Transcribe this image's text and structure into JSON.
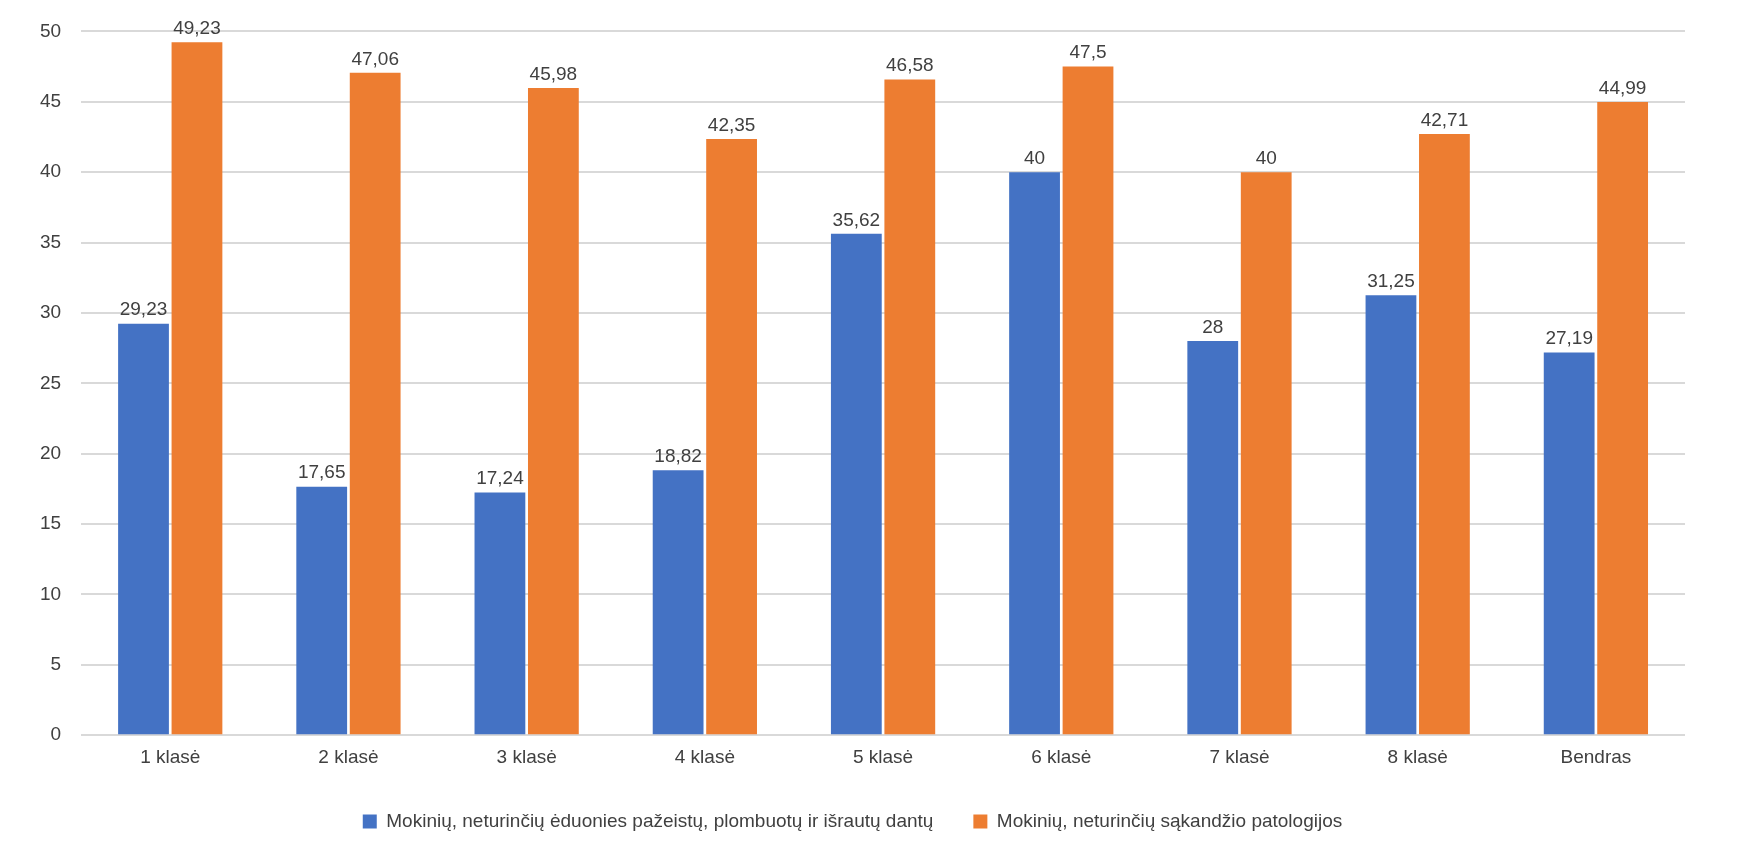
{
  "chart_data": {
    "type": "bar",
    "categories": [
      "1 klasė",
      "2 klasė",
      "3 klasė",
      "4 klasė",
      "5 klasė",
      "6 klasė",
      "7 klasė",
      "8 klasė",
      "Bendras"
    ],
    "series": [
      {
        "name": "Mokinių, neturinčių ėduonies pažeistų, plombuotų ir išrautų dantų",
        "color": "#4472c4",
        "values": [
          29.23,
          17.65,
          17.24,
          18.82,
          35.62,
          40,
          28,
          31.25,
          27.19
        ],
        "value_labels": [
          "29,23",
          "17,65",
          "17,24",
          "18,82",
          "35,62",
          "40",
          "28",
          "31,25",
          "27,19"
        ]
      },
      {
        "name": "Mokinių, neturinčių sąkandžio patologijos",
        "color": "#ed7d31",
        "values": [
          49.23,
          47.06,
          45.98,
          42.35,
          46.58,
          47.5,
          40,
          42.71,
          44.99
        ],
        "value_labels": [
          "49,23",
          "47,06",
          "45,98",
          "42,35",
          "46,58",
          "47,5",
          "40",
          "42,71",
          "44,99"
        ]
      }
    ],
    "ylim": [
      0,
      50
    ],
    "yticks": [
      0,
      5,
      10,
      15,
      20,
      25,
      30,
      35,
      40,
      45,
      50
    ],
    "grid": "y",
    "legend": "bottom"
  }
}
